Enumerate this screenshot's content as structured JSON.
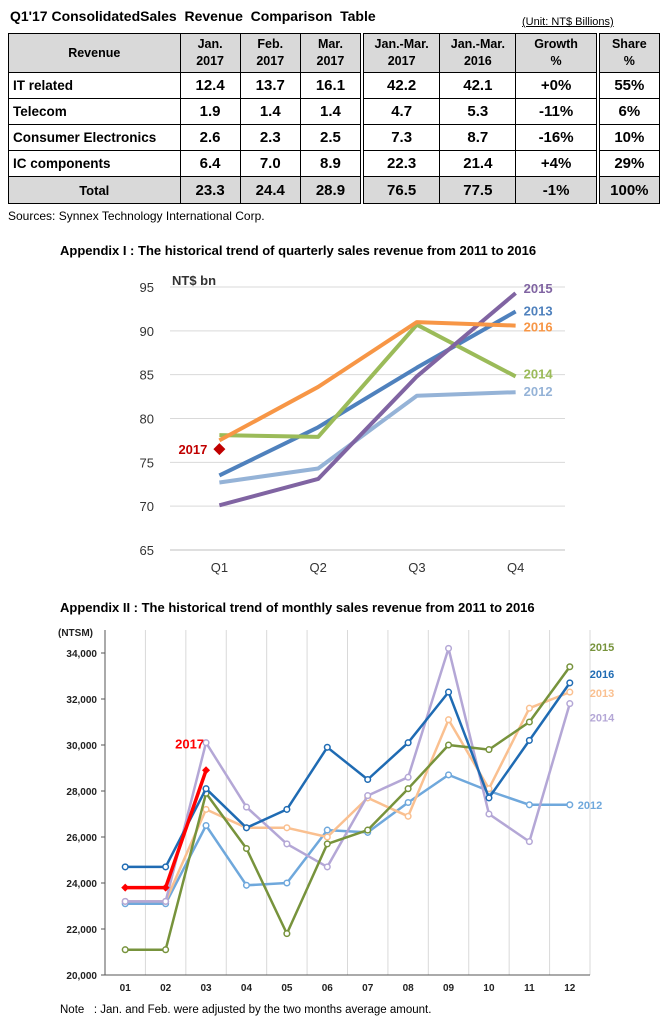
{
  "title": "Q1'17 ConsolidatedSales  Revenue  Comparison  Table",
  "unit": "(Unit: NT$ Billions)",
  "table": {
    "headers": [
      {
        "l1": "Revenue",
        "l2": ""
      },
      {
        "l1": "Jan.",
        "l2": "2017"
      },
      {
        "l1": "Feb.",
        "l2": "2017"
      },
      {
        "l1": "Mar.",
        "l2": "2017"
      },
      {
        "l1": "Jan.-Mar.",
        "l2": "2017"
      },
      {
        "l1": "Jan.-Mar.",
        "l2": "2016"
      },
      {
        "l1": "Growth",
        "l2": "%"
      },
      {
        "l1": "Share",
        "l2": "%"
      }
    ],
    "rows": [
      {
        "label": "IT related",
        "jan": "12.4",
        "feb": "13.7",
        "mar": "16.1",
        "q17": "42.2",
        "q16": "42.1",
        "growth": "+0%",
        "share": "55%"
      },
      {
        "label": "Telecom",
        "jan": "1.9",
        "feb": "1.4",
        "mar": "1.4",
        "q17": "4.7",
        "q16": "5.3",
        "growth": "-11%",
        "share": "6%"
      },
      {
        "label": "Consumer Electronics",
        "jan": "2.6",
        "feb": "2.3",
        "mar": "2.5",
        "q17": "7.3",
        "q16": "8.7",
        "growth": "-16%",
        "share": "10%"
      },
      {
        "label": "IC components",
        "jan": "6.4",
        "feb": "7.0",
        "mar": "8.9",
        "q17": "22.3",
        "q16": "21.4",
        "growth": "+4%",
        "share": "29%"
      }
    ],
    "total": {
      "label": "Total",
      "jan": "23.3",
      "feb": "24.4",
      "mar": "28.9",
      "q17": "76.5",
      "q16": "77.5",
      "growth": "-1%",
      "share": "100%"
    }
  },
  "source": "Sources: Synnex Technology International Corp.",
  "note": "Note   : Jan. and Feb. were adjusted by the two months average amount.",
  "chart_data": [
    {
      "type": "line",
      "title": "Appendix I : The historical trend of quarterly sales revenue from 2011 to 2016",
      "ylabel": "NT$ bn",
      "categories": [
        "Q1",
        "Q2",
        "Q3",
        "Q4"
      ],
      "ylim": [
        65,
        95
      ],
      "yticks": [
        "65",
        "70",
        "75",
        "80",
        "85",
        "90",
        "95"
      ],
      "grid": "horizontal",
      "series": [
        {
          "name": "2012",
          "color": "#95b3d7",
          "values": [
            72.7,
            74.3,
            82.6,
            83.0
          ]
        },
        {
          "name": "2013",
          "color": "#4f81bd",
          "values": [
            73.5,
            79.0,
            85.8,
            92.2
          ]
        },
        {
          "name": "2014",
          "color": "#9bbb59",
          "values": [
            78.1,
            77.9,
            90.7,
            84.8
          ]
        },
        {
          "name": "2015",
          "color": "#8064a2",
          "values": [
            70.1,
            73.1,
            84.8,
            94.3
          ]
        },
        {
          "name": "2016",
          "color": "#f79646",
          "values": [
            77.5,
            83.6,
            91.0,
            90.6
          ]
        }
      ],
      "highlight": {
        "label": "2017",
        "color": "#c00000",
        "category": "Q1",
        "value": 76.5
      }
    },
    {
      "type": "line",
      "title": "Appendix II : The historical trend of monthly sales revenue from 2011 to 2016",
      "ylabel": "(NTSM)",
      "categories": [
        "01",
        "02",
        "03",
        "04",
        "05",
        "06",
        "07",
        "08",
        "09",
        "10",
        "11",
        "12"
      ],
      "ylim": [
        20000,
        35000
      ],
      "yticks": [
        "20,000",
        "22,000",
        "24,000",
        "26,000",
        "28,000",
        "30,000",
        "32,000",
        "34,000"
      ],
      "grid": "vertical",
      "series": [
        {
          "name": "2012",
          "color": "#6fa8dc",
          "values": [
            23100,
            23100,
            26500,
            23900,
            24000,
            26300,
            26200,
            27500,
            28700,
            28000,
            27400,
            27400
          ]
        },
        {
          "name": "2013",
          "color": "#fac090",
          "values": [
            23200,
            23200,
            27200,
            26400,
            26400,
            26000,
            27700,
            26900,
            31100,
            28100,
            31600,
            32300
          ]
        },
        {
          "name": "2014",
          "color": "#b4a7d6",
          "values": [
            23200,
            23200,
            30100,
            27300,
            25700,
            24700,
            27800,
            28600,
            34200,
            27000,
            25800,
            31800
          ]
        },
        {
          "name": "2015",
          "color": "#77933c",
          "values": [
            21100,
            21100,
            27900,
            25500,
            21800,
            25700,
            26300,
            28100,
            30000,
            29800,
            31000,
            33400
          ]
        },
        {
          "name": "2016",
          "color": "#1f6bb3",
          "values": [
            24700,
            24700,
            28100,
            26400,
            27200,
            29900,
            28500,
            30100,
            32300,
            27700,
            30200,
            32700
          ]
        }
      ],
      "highlight_series": {
        "name": "2017",
        "color": "#ff0000",
        "values": [
          23800,
          23800,
          28900
        ]
      }
    }
  ]
}
